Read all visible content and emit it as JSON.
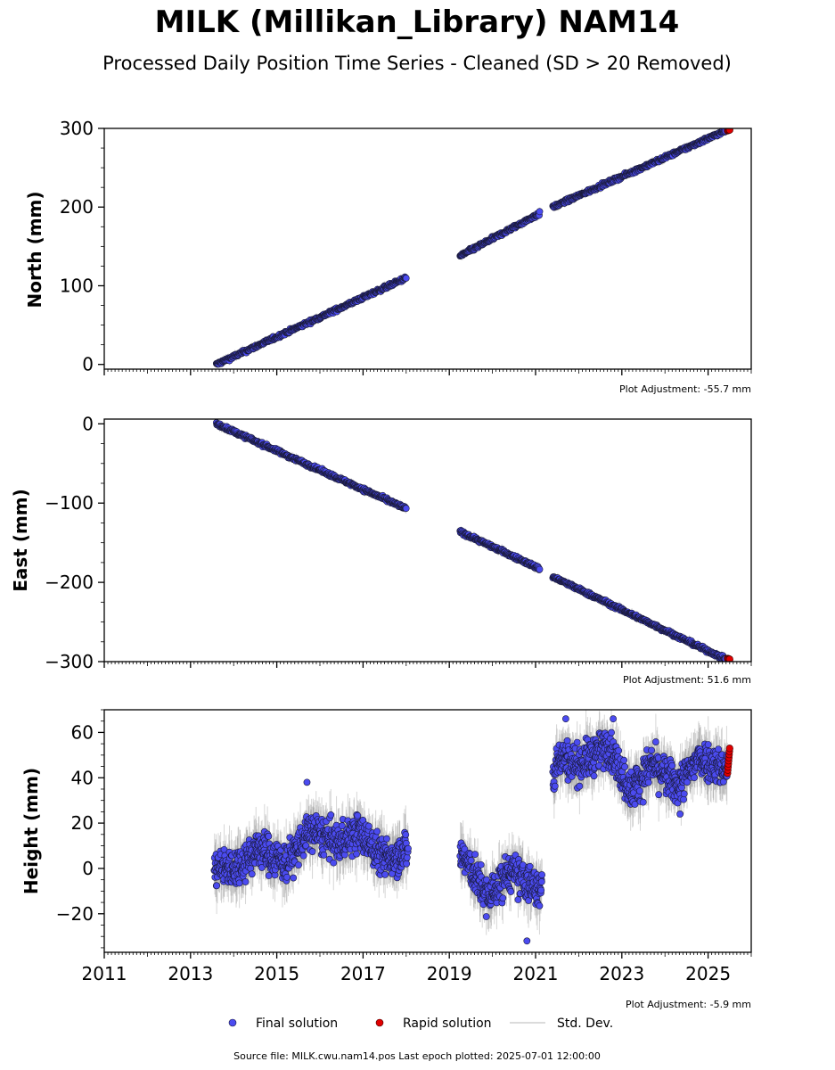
{
  "title": "MILK (Millikan_Library) NAM14",
  "subtitle": "Processed Daily Position Time Series - Cleaned (SD > 20 Removed)",
  "footer": "Source file: MILK.cwu.nam14.pos  Last epoch plotted: 2025-07-01 12:00:00",
  "legend": {
    "final": "Final solution",
    "rapid": "Rapid solution",
    "std": "Std. Dev."
  },
  "colors": {
    "final": "#4b4bf0",
    "final_edge": "#1a1a3a",
    "rapid": "#e00000",
    "std": "#9a9a9a"
  },
  "chart_data": [
    {
      "type": "scatter",
      "ylabel": "North (mm)",
      "adjustment": "Plot Adjustment: -55.7 mm",
      "xlim": [
        2011,
        2026
      ],
      "ylim": [
        -6,
        300
      ],
      "yticks": [
        0,
        100,
        200,
        300
      ],
      "ytick_labels": [
        "0",
        "100",
        "200",
        "300"
      ],
      "xtick_labels_shown": false,
      "segments": [
        {
          "x": [
            2013.6,
            2018.0
          ],
          "y": [
            0,
            110
          ]
        },
        {
          "x": [
            2019.25,
            2021.1
          ],
          "y": [
            138,
            192
          ]
        },
        {
          "x": [
            2021.4,
            2025.4
          ],
          "y": [
            200,
            297
          ]
        }
      ],
      "scatter": 1.8,
      "rapid": {
        "x": [
          2025.45,
          2025.5
        ],
        "y": [
          297,
          298
        ]
      }
    },
    {
      "type": "scatter",
      "ylabel": "East (mm)",
      "adjustment": "Plot Adjustment: 51.6 mm",
      "xlim": [
        2011,
        2026
      ],
      "ylim": [
        -300,
        6
      ],
      "yticks": [
        0,
        -100,
        -200,
        -300
      ],
      "ytick_labels": [
        "0",
        "−100",
        "−200",
        "−300"
      ],
      "xtick_labels_shown": false,
      "segments": [
        {
          "x": [
            2013.6,
            2018.0
          ],
          "y": [
            0,
            -107
          ]
        },
        {
          "x": [
            2019.25,
            2021.1
          ],
          "y": [
            -136,
            -183
          ]
        },
        {
          "x": [
            2021.4,
            2025.4
          ],
          "y": [
            -193,
            -297
          ]
        }
      ],
      "scatter": 1.8,
      "rapid": {
        "x": [
          2025.45,
          2025.5
        ],
        "y": [
          -296,
          -297
        ]
      }
    },
    {
      "type": "scatter",
      "ylabel": "Height (mm)",
      "adjustment": "Plot Adjustment: -5.9 mm",
      "xlim": [
        2011,
        2026
      ],
      "ylim": [
        -37,
        70
      ],
      "yticks": [
        -20,
        0,
        20,
        40,
        60
      ],
      "ytick_labels": [
        "−20",
        "0",
        "20",
        "40",
        "60"
      ],
      "xticks": [
        2011,
        2013,
        2015,
        2017,
        2019,
        2021,
        2023,
        2025
      ],
      "xtick_labels": [
        "2011",
        "2013",
        "2015",
        "2017",
        "2019",
        "2021",
        "2023",
        "2025"
      ],
      "xtick_labels_shown": true,
      "segments": [
        {
          "x": [
            2013.55,
            2018.05
          ],
          "y": [
            5,
            5
          ]
        },
        {
          "x": [
            2019.25,
            2021.15
          ],
          "y": [
            -5,
            -5
          ]
        },
        {
          "x": [
            2021.4,
            2025.45
          ],
          "y": [
            45,
            45
          ]
        }
      ],
      "scatter": 7,
      "wave": [
        {
          "x": 2014.0,
          "y": 0
        },
        {
          "x": 2014.6,
          "y": 9
        },
        {
          "x": 2015.2,
          "y": 2
        },
        {
          "x": 2015.8,
          "y": 17
        },
        {
          "x": 2016.4,
          "y": 11
        },
        {
          "x": 2016.9,
          "y": 16
        },
        {
          "x": 2017.5,
          "y": 4
        },
        {
          "x": 2018.0,
          "y": 8
        },
        {
          "x": 2019.3,
          "y": 6
        },
        {
          "x": 2019.9,
          "y": -13
        },
        {
          "x": 2020.4,
          "y": -1
        },
        {
          "x": 2021.1,
          "y": -10
        },
        {
          "x": 2021.5,
          "y": 50
        },
        {
          "x": 2022.0,
          "y": 46
        },
        {
          "x": 2022.7,
          "y": 54
        },
        {
          "x": 2023.2,
          "y": 34
        },
        {
          "x": 2023.7,
          "y": 46
        },
        {
          "x": 2024.3,
          "y": 36
        },
        {
          "x": 2024.8,
          "y": 49
        },
        {
          "x": 2025.4,
          "y": 44
        }
      ],
      "outliers": [
        {
          "x": 2015.7,
          "y": 38
        },
        {
          "x": 2020.8,
          "y": -32
        },
        {
          "x": 2021.7,
          "y": 66
        },
        {
          "x": 2022.8,
          "y": 66
        },
        {
          "x": 2024.35,
          "y": 24
        }
      ],
      "rapid": {
        "x": [
          2025.45,
          2025.5
        ],
        "y": [
          42,
          53
        ]
      }
    }
  ]
}
